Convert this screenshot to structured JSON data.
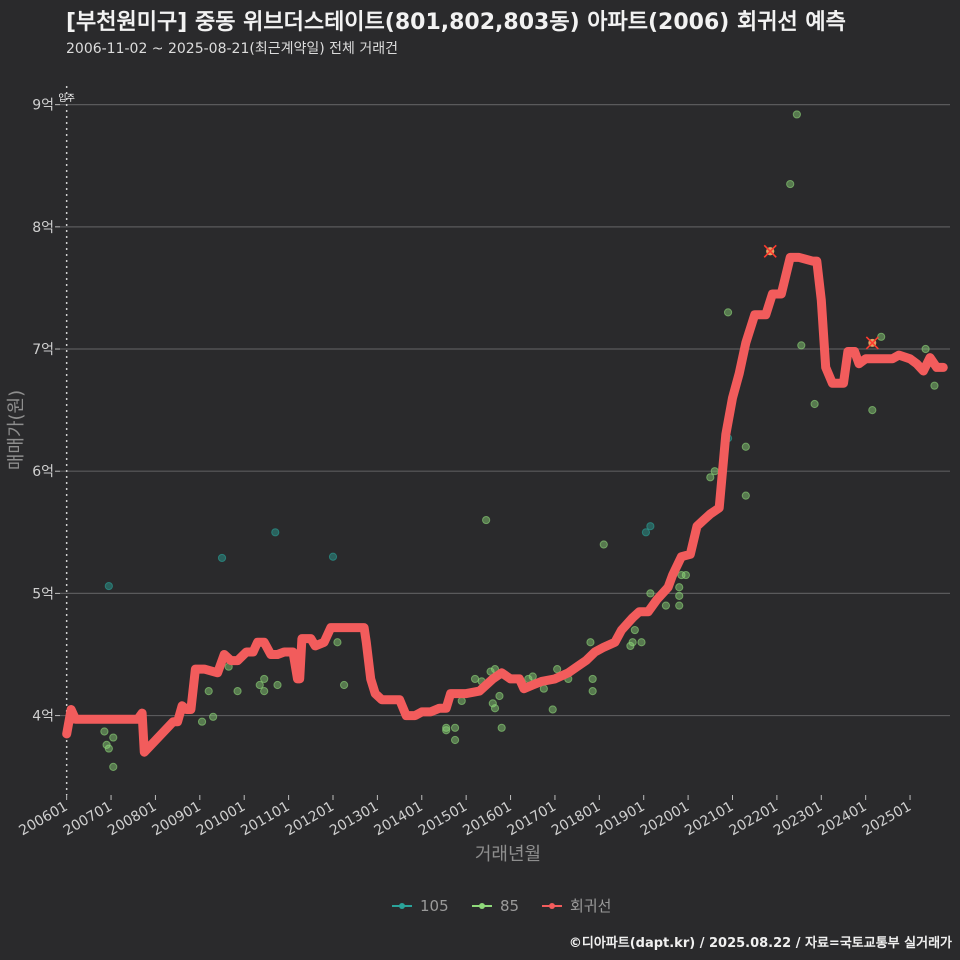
{
  "header": {
    "title": "[부천원미구] 중동 위브더스테이트(801,802,803동) 아파트(2006) 회귀선 예측",
    "subtitle": "2006-11-02 ~ 2025-08-21(최근계약일) 전체 거래건"
  },
  "caption": "©디아파트(dapt.kr) / 2025.08.22 / 자료=국토교통부 실거래가",
  "chart_data": {
    "type": "scatter",
    "title": "[부천원미구] 중동 위브더스테이트(801,802,803동) 아파트(2006) 회귀선 예측",
    "xlabel": "거래년월",
    "ylabel": "매매가(원)",
    "ylim": [
      3.35,
      9.3
    ],
    "y_unit": "억",
    "y_ticks": [
      4,
      5,
      6,
      7,
      8,
      9
    ],
    "y_tick_labels": [
      "4억",
      "5억",
      "6억",
      "7억",
      "8억",
      "9억"
    ],
    "x_range": [
      2005.85,
      2025.9
    ],
    "x_ticks": [
      2006,
      2007,
      2008,
      2009,
      2010,
      2011,
      2012,
      2013,
      2014,
      2015,
      2016,
      2017,
      2018,
      2019,
      2020,
      2021,
      2022,
      2023,
      2024,
      2025
    ],
    "x_tick_labels": [
      "200601",
      "200701",
      "200801",
      "200901",
      "201001",
      "201101",
      "201201",
      "201301",
      "201401",
      "201501",
      "201601",
      "201701",
      "201801",
      "201901",
      "202001",
      "202101",
      "202201",
      "202301",
      "202401",
      "202501"
    ],
    "grid": "horizontal",
    "legend_position": "bottom",
    "annotation": {
      "text": "입주",
      "x": 2006.0
    },
    "colors": {
      "105": "#2aa39a",
      "85": "#8fd97a",
      "regression": "#f25c5c",
      "outlier": "#ff3b2f"
    },
    "series": [
      {
        "name": "105",
        "points": [
          [
            2006.95,
            5.06
          ],
          [
            2009.5,
            5.29
          ],
          [
            2010.7,
            5.5
          ],
          [
            2012.0,
            5.3
          ],
          [
            2019.05,
            5.5
          ],
          [
            2019.15,
            5.55
          ],
          [
            2020.9,
            6.27
          ]
        ]
      },
      {
        "name": "85",
        "points": [
          [
            2006.85,
            3.87
          ],
          [
            2006.9,
            3.76
          ],
          [
            2006.95,
            3.73
          ],
          [
            2007.05,
            3.82
          ],
          [
            2007.05,
            3.58
          ],
          [
            2009.05,
            3.95
          ],
          [
            2009.2,
            4.2
          ],
          [
            2009.3,
            3.99
          ],
          [
            2009.65,
            4.4
          ],
          [
            2009.85,
            4.2
          ],
          [
            2010.35,
            4.25
          ],
          [
            2010.45,
            4.3
          ],
          [
            2010.45,
            4.2
          ],
          [
            2010.75,
            4.25
          ],
          [
            2012.1,
            4.6
          ],
          [
            2012.25,
            4.25
          ],
          [
            2014.55,
            3.88
          ],
          [
            2014.55,
            3.9
          ],
          [
            2014.75,
            3.9
          ],
          [
            2014.75,
            3.8
          ],
          [
            2014.9,
            4.12
          ],
          [
            2015.2,
            4.3
          ],
          [
            2015.35,
            4.28
          ],
          [
            2015.45,
            5.6
          ],
          [
            2015.55,
            4.36
          ],
          [
            2015.6,
            4.1
          ],
          [
            2015.65,
            4.38
          ],
          [
            2015.65,
            4.06
          ],
          [
            2015.75,
            4.16
          ],
          [
            2015.8,
            3.9
          ],
          [
            2016.1,
            4.3
          ],
          [
            2016.4,
            4.3
          ],
          [
            2016.5,
            4.32
          ],
          [
            2016.75,
            4.22
          ],
          [
            2016.95,
            4.05
          ],
          [
            2017.05,
            4.38
          ],
          [
            2017.3,
            4.3
          ],
          [
            2017.8,
            4.6
          ],
          [
            2017.85,
            4.2
          ],
          [
            2017.85,
            4.3
          ],
          [
            2018.1,
            5.4
          ],
          [
            2018.7,
            4.57
          ],
          [
            2018.75,
            4.6
          ],
          [
            2018.8,
            4.7
          ],
          [
            2018.95,
            4.6
          ],
          [
            2019.15,
            5.0
          ],
          [
            2019.5,
            4.9
          ],
          [
            2019.8,
            5.05
          ],
          [
            2019.8,
            4.98
          ],
          [
            2019.8,
            4.9
          ],
          [
            2019.85,
            5.15
          ],
          [
            2019.95,
            5.15
          ],
          [
            2020.5,
            5.95
          ],
          [
            2020.6,
            6.0
          ],
          [
            2020.9,
            7.3
          ],
          [
            2021.3,
            6.2
          ],
          [
            2021.3,
            5.8
          ],
          [
            2021.85,
            7.8
          ],
          [
            2022.3,
            8.35
          ],
          [
            2022.45,
            8.92
          ],
          [
            2022.55,
            7.03
          ],
          [
            2022.85,
            6.55
          ],
          [
            2024.15,
            6.5
          ],
          [
            2024.35,
            7.1
          ],
          [
            2025.35,
            7.0
          ],
          [
            2025.55,
            6.7
          ]
        ]
      },
      {
        "name": "회귀선",
        "points": [
          [
            2006.0,
            3.85
          ],
          [
            2006.1,
            4.05
          ],
          [
            2006.2,
            3.97
          ],
          [
            2007.0,
            3.97
          ],
          [
            2007.6,
            3.97
          ],
          [
            2007.7,
            4.02
          ],
          [
            2007.75,
            3.7
          ],
          [
            2008.4,
            3.95
          ],
          [
            2008.5,
            3.95
          ],
          [
            2008.6,
            4.08
          ],
          [
            2008.7,
            4.05
          ],
          [
            2008.8,
            4.05
          ],
          [
            2008.9,
            4.38
          ],
          [
            2009.1,
            4.38
          ],
          [
            2009.4,
            4.35
          ],
          [
            2009.55,
            4.5
          ],
          [
            2009.7,
            4.45
          ],
          [
            2009.85,
            4.45
          ],
          [
            2010.05,
            4.52
          ],
          [
            2010.2,
            4.52
          ],
          [
            2010.3,
            4.6
          ],
          [
            2010.45,
            4.6
          ],
          [
            2010.6,
            4.5
          ],
          [
            2010.75,
            4.5
          ],
          [
            2010.9,
            4.52
          ],
          [
            2011.1,
            4.52
          ],
          [
            2011.2,
            4.3
          ],
          [
            2011.25,
            4.3
          ],
          [
            2011.3,
            4.63
          ],
          [
            2011.5,
            4.63
          ],
          [
            2011.6,
            4.57
          ],
          [
            2011.8,
            4.6
          ],
          [
            2011.95,
            4.72
          ],
          [
            2012.7,
            4.72
          ],
          [
            2012.75,
            4.6
          ],
          [
            2012.85,
            4.3
          ],
          [
            2012.95,
            4.18
          ],
          [
            2013.1,
            4.13
          ],
          [
            2013.5,
            4.13
          ],
          [
            2013.65,
            4.0
          ],
          [
            2013.85,
            4.0
          ],
          [
            2014.0,
            4.03
          ],
          [
            2014.2,
            4.03
          ],
          [
            2014.4,
            4.06
          ],
          [
            2014.55,
            4.06
          ],
          [
            2014.65,
            4.18
          ],
          [
            2015.0,
            4.18
          ],
          [
            2015.3,
            4.2
          ],
          [
            2015.6,
            4.3
          ],
          [
            2015.8,
            4.35
          ],
          [
            2016.0,
            4.3
          ],
          [
            2016.2,
            4.3
          ],
          [
            2016.3,
            4.22
          ],
          [
            2016.5,
            4.25
          ],
          [
            2016.7,
            4.28
          ],
          [
            2017.0,
            4.3
          ],
          [
            2017.3,
            4.35
          ],
          [
            2017.5,
            4.4
          ],
          [
            2017.7,
            4.45
          ],
          [
            2017.9,
            4.52
          ],
          [
            2018.1,
            4.56
          ],
          [
            2018.35,
            4.6
          ],
          [
            2018.5,
            4.7
          ],
          [
            2018.75,
            4.8
          ],
          [
            2018.9,
            4.85
          ],
          [
            2019.1,
            4.85
          ],
          [
            2019.3,
            4.95
          ],
          [
            2019.55,
            5.05
          ],
          [
            2019.65,
            5.15
          ],
          [
            2019.85,
            5.3
          ],
          [
            2020.05,
            5.32
          ],
          [
            2020.2,
            5.55
          ],
          [
            2020.35,
            5.6
          ],
          [
            2020.5,
            5.65
          ],
          [
            2020.7,
            5.7
          ],
          [
            2020.85,
            6.3
          ],
          [
            2021.0,
            6.6
          ],
          [
            2021.15,
            6.8
          ],
          [
            2021.3,
            7.05
          ],
          [
            2021.5,
            7.28
          ],
          [
            2021.75,
            7.28
          ],
          [
            2021.9,
            7.45
          ],
          [
            2022.1,
            7.45
          ],
          [
            2022.3,
            7.75
          ],
          [
            2022.5,
            7.75
          ],
          [
            2022.8,
            7.72
          ],
          [
            2022.9,
            7.72
          ],
          [
            2023.0,
            7.4
          ],
          [
            2023.1,
            6.85
          ],
          [
            2023.25,
            6.72
          ],
          [
            2023.5,
            6.72
          ],
          [
            2023.6,
            6.98
          ],
          [
            2023.75,
            6.98
          ],
          [
            2023.85,
            6.88
          ],
          [
            2024.0,
            6.92
          ],
          [
            2024.6,
            6.92
          ],
          [
            2024.75,
            6.95
          ],
          [
            2025.0,
            6.92
          ],
          [
            2025.15,
            6.88
          ],
          [
            2025.3,
            6.82
          ],
          [
            2025.45,
            6.93
          ],
          [
            2025.6,
            6.85
          ],
          [
            2025.75,
            6.85
          ]
        ]
      }
    ],
    "outliers": [
      [
        2021.85,
        7.8
      ],
      [
        2024.15,
        7.05
      ]
    ]
  }
}
